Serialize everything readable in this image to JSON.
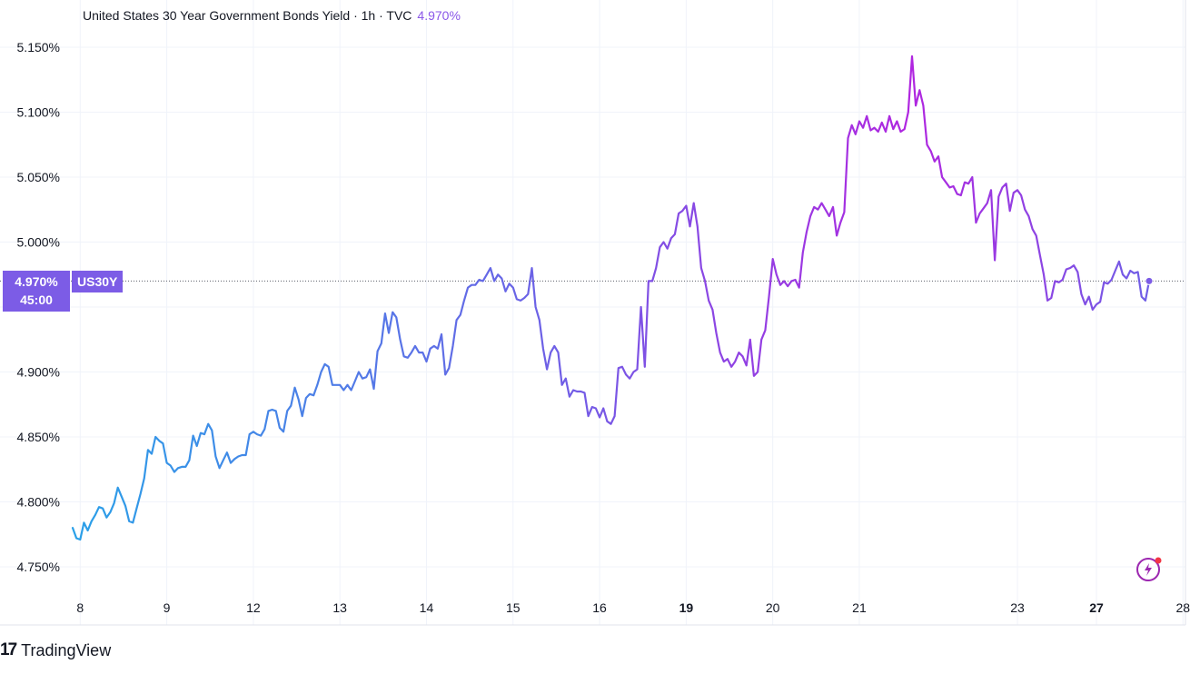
{
  "header": {
    "title": "United States 30 Year Government Bonds Yield · 1h · TVC",
    "current_value": "4.970%"
  },
  "price_badge": {
    "value": "4.970%",
    "countdown": "45:00"
  },
  "symbol_badge": {
    "label": "US30Y"
  },
  "branding": {
    "logo_mark": "17",
    "name": "TradingView"
  },
  "icons": {
    "bolt": "lightning-bolt-icon"
  },
  "colors": {
    "line_start": "#2aa0e8",
    "line_mid": "#6f5fe6",
    "line_peak": "#b026e0",
    "badge": "#7c5ce6",
    "grid": "#f0f3fa"
  },
  "chart_data": {
    "type": "line",
    "title": "United States 30 Year Government Bonds Yield · 1h · TVC",
    "xlabel": "",
    "ylabel": "",
    "ylim": [
      4.72,
      5.17
    ],
    "y_ticks": [
      "5.150%",
      "5.100%",
      "5.050%",
      "5.000%",
      "4.950%",
      "4.900%",
      "4.850%",
      "4.800%",
      "4.750%"
    ],
    "y_tick_values": [
      5.15,
      5.1,
      5.05,
      5.0,
      4.95,
      4.9,
      4.85,
      4.8,
      4.75
    ],
    "x_ticks": [
      "8",
      "9",
      "12",
      "13",
      "14",
      "15",
      "16",
      "19",
      "20",
      "21",
      "23",
      "27",
      "28"
    ],
    "x_tick_index": [
      2,
      25,
      48,
      71,
      94,
      117,
      140,
      163,
      186,
      209,
      251,
      272,
      295
    ],
    "x_tick_bold": [
      "19",
      "27"
    ],
    "grid": true,
    "reference_line": 4.97,
    "values": [
      4.78,
      4.772,
      4.771,
      4.784,
      4.778,
      4.785,
      4.79,
      4.796,
      4.795,
      4.788,
      4.792,
      4.799,
      4.811,
      4.804,
      4.797,
      4.785,
      4.784,
      4.795,
      4.806,
      4.818,
      4.84,
      4.837,
      4.85,
      4.847,
      4.845,
      4.83,
      4.828,
      4.823,
      4.826,
      4.827,
      4.827,
      4.832,
      4.851,
      4.843,
      4.853,
      4.852,
      4.86,
      4.855,
      4.835,
      4.826,
      4.832,
      4.838,
      4.83,
      4.833,
      4.835,
      4.836,
      4.836,
      4.852,
      4.854,
      4.852,
      4.851,
      4.856,
      4.87,
      4.871,
      4.87,
      4.857,
      4.854,
      4.87,
      4.874,
      4.888,
      4.879,
      4.866,
      4.88,
      4.883,
      4.882,
      4.89,
      4.9,
      4.906,
      4.904,
      4.89,
      4.89,
      4.89,
      4.886,
      4.89,
      4.886,
      4.893,
      4.9,
      4.895,
      4.896,
      4.902,
      4.887,
      4.916,
      4.922,
      4.945,
      4.93,
      4.946,
      4.942,
      4.925,
      4.912,
      4.911,
      4.915,
      4.92,
      4.915,
      4.915,
      4.908,
      4.918,
      4.92,
      4.918,
      4.929,
      4.898,
      4.903,
      4.92,
      4.94,
      4.944,
      4.955,
      4.965,
      4.967,
      4.967,
      4.971,
      4.97,
      4.975,
      4.98,
      4.97,
      4.975,
      4.972,
      4.962,
      4.968,
      4.965,
      4.956,
      4.955,
      4.957,
      4.96,
      4.98,
      4.95,
      4.94,
      4.918,
      4.902,
      4.915,
      4.92,
      4.915,
      4.89,
      4.895,
      4.881,
      4.886,
      4.885,
      4.885,
      4.884,
      4.866,
      4.873,
      4.872,
      4.865,
      4.872,
      4.862,
      4.86,
      4.866,
      4.903,
      4.904,
      4.898,
      4.895,
      4.9,
      4.902,
      4.95,
      4.904,
      4.97,
      4.97,
      4.98,
      4.996,
      5.0,
      4.995,
      5.003,
      5.006,
      5.022,
      5.024,
      5.028,
      5.012,
      5.03,
      5.012,
      4.98,
      4.97,
      4.955,
      4.948,
      4.93,
      4.915,
      4.908,
      4.91,
      4.904,
      4.908,
      4.915,
      4.912,
      4.905,
      4.925,
      4.897,
      4.9,
      4.925,
      4.932,
      4.958,
      4.987,
      4.975,
      4.967,
      4.97,
      4.966,
      4.97,
      4.971,
      4.965,
      4.992,
      5.008,
      5.02,
      5.027,
      5.025,
      5.03,
      5.025,
      5.02,
      5.027,
      5.005,
      5.015,
      5.023,
      5.08,
      5.09,
      5.083,
      5.093,
      5.088,
      5.097,
      5.086,
      5.088,
      5.085,
      5.092,
      5.085,
      5.097,
      5.087,
      5.093,
      5.085,
      5.087,
      5.1,
      5.143,
      5.105,
      5.117,
      5.105,
      5.075,
      5.07,
      5.062,
      5.066,
      5.05,
      5.046,
      5.042,
      5.043,
      5.037,
      5.036,
      5.046,
      5.045,
      5.05,
      5.015,
      5.022,
      5.026,
      5.03,
      5.04,
      4.986,
      5.035,
      5.042,
      5.045,
      5.024,
      5.038,
      5.04,
      5.036,
      5.025,
      5.02,
      5.01,
      5.005,
      4.99,
      4.975,
      4.955,
      4.957,
      4.97,
      4.969,
      4.971,
      4.979,
      4.98,
      4.982,
      4.977,
      4.96,
      4.952,
      4.958,
      4.948,
      4.952,
      4.954,
      4.969,
      4.968,
      4.971,
      4.978,
      4.985,
      4.975,
      4.972,
      4.978,
      4.976,
      4.977,
      4.958,
      4.955,
      4.97
    ]
  }
}
